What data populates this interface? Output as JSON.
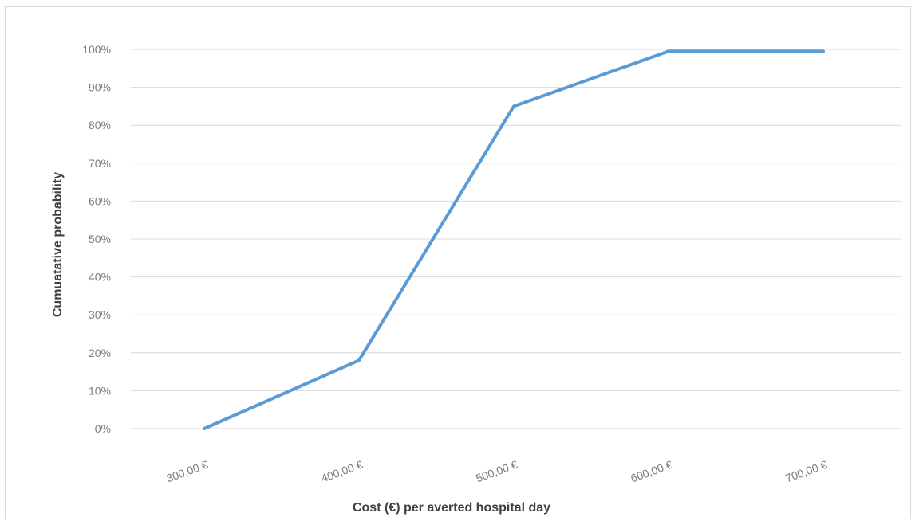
{
  "chart_data": {
    "type": "line",
    "title": "",
    "xlabel": "Cost (€) per averted hospital day",
    "ylabel": "Cumuatative probability",
    "categories": [
      "300,00 €",
      "400,00 €",
      "500,00 €",
      "600,00 €",
      "700,00 €"
    ],
    "y_tick_labels": [
      "0%",
      "10%",
      "20%",
      "30%",
      "40%",
      "50%",
      "60%",
      "70%",
      "80%",
      "90%",
      "100%"
    ],
    "ylim": [
      0,
      100
    ],
    "y_unit": "percent",
    "grid": true,
    "legend": "none",
    "series": [
      {
        "values": [
          0,
          18,
          85,
          99.5,
          99.5
        ],
        "color": "#5b9bd5"
      }
    ]
  }
}
